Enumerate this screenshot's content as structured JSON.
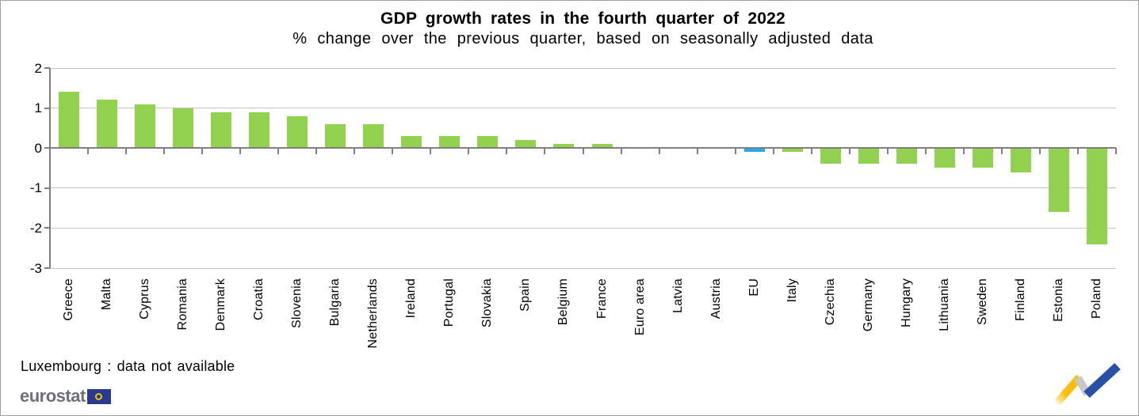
{
  "header": {
    "title": "GDP growth rates in the fourth quarter of 2022",
    "subtitle": "% change over the previous quarter, based on seasonally adjusted data"
  },
  "chart_data": {
    "type": "bar",
    "title": "GDP growth rates in the fourth quarter of 2022",
    "subtitle": "% change over the previous quarter, based on seasonally adjusted data",
    "xlabel": "",
    "ylabel": "",
    "ylim": [
      -3,
      2
    ],
    "yticks": [
      2,
      1,
      0,
      -1,
      -2,
      -3
    ],
    "grid": true,
    "legend": "none",
    "categories": [
      "Greece",
      "Malta",
      "Cyprus",
      "Romania",
      "Denmark",
      "Croatia",
      "Slovenia",
      "Bulgaria",
      "Netherlands",
      "Ireland",
      "Portugal",
      "Slovakia",
      "Spain",
      "Belgium",
      "France",
      "Euro area",
      "Latvia",
      "Austria",
      "EU",
      "Italy",
      "Czechia",
      "Germany",
      "Hungary",
      "Lithuania",
      "Sweden",
      "Finland",
      "Estonia",
      "Poland"
    ],
    "values": [
      1.4,
      1.2,
      1.1,
      1.0,
      0.9,
      0.9,
      0.8,
      0.6,
      0.6,
      0.3,
      0.3,
      0.3,
      0.2,
      0.1,
      0.1,
      0.0,
      0.0,
      0.0,
      -0.1,
      -0.1,
      -0.4,
      -0.4,
      -0.4,
      -0.5,
      -0.5,
      -0.6,
      -1.6,
      -2.4
    ],
    "highlighted_category": "EU",
    "bar_color_default": "#92D050",
    "bar_color_highlight": "#29ABE2",
    "note": "Luxembourg : data not available"
  },
  "footer": {
    "footnote": "Luxembourg : data not available",
    "brand_text": "eurostat",
    "brand_flag_icon": "eu-flag-icon",
    "corner_logo_icon": "trend-zigzag-logo"
  },
  "colors": {
    "bar_green": "#92D050",
    "bar_blue": "#29ABE2",
    "gridline": "#C3C3C3",
    "axis_gray": "#7F7F7F",
    "frame_border": "#A0A0A0",
    "brand_gray": "#6E7078",
    "eu_flag_blue": "#2B3990",
    "eu_star_yellow": "#F3C300",
    "logo_yellow": "#FBBE0F",
    "logo_gray": "#C8C8CC",
    "logo_blue": "#2850A7"
  }
}
